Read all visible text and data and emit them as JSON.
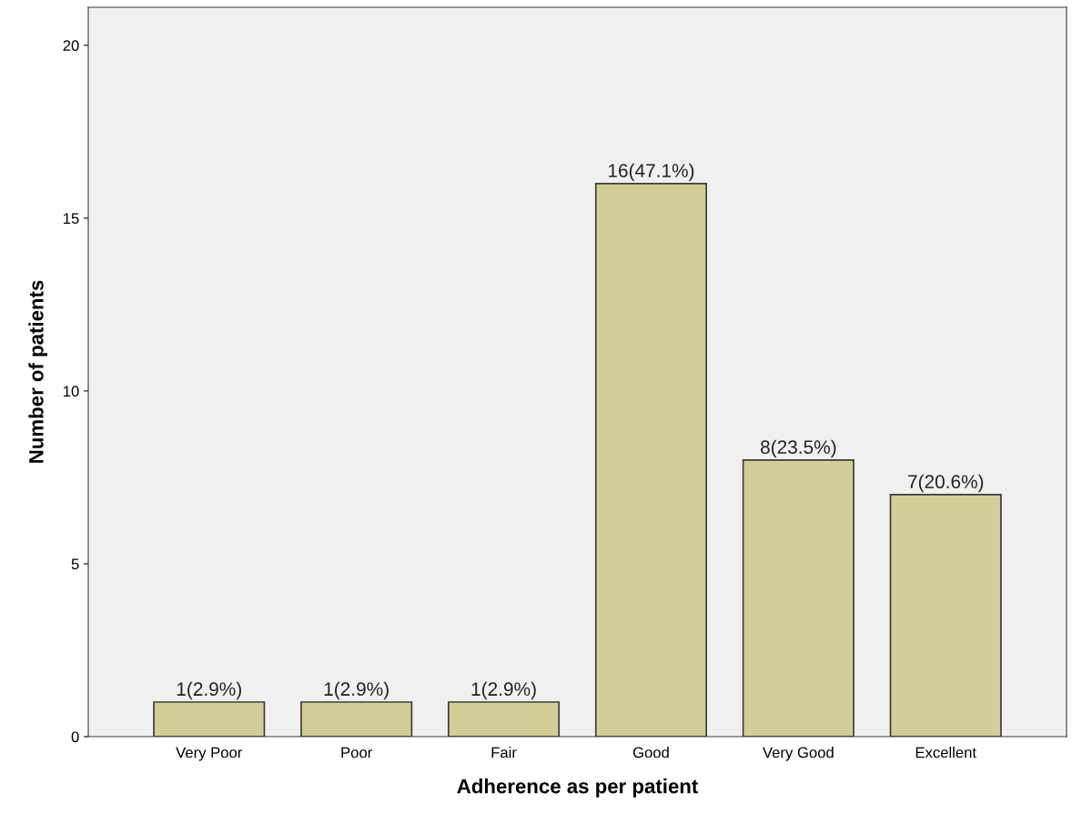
{
  "chart_data": {
    "type": "bar",
    "xlabel": "Adherence as per patient",
    "ylabel": "Number of patients",
    "categories": [
      "Very Poor",
      "Poor",
      "Fair",
      "Good",
      "Very Good",
      "Excellent"
    ],
    "values": [
      1,
      1,
      1,
      16,
      8,
      7
    ],
    "value_labels": [
      "1(2.9%)",
      "1(2.9%)",
      "1(2.9%)",
      "16(47.1%)",
      "8(23.5%)",
      "7(20.6%)"
    ],
    "color": "#d3ce97",
    "ylim": [
      0,
      21.1
    ],
    "yticks": [
      0,
      5,
      10,
      15,
      20
    ],
    "grid": false,
    "legend": false
  }
}
